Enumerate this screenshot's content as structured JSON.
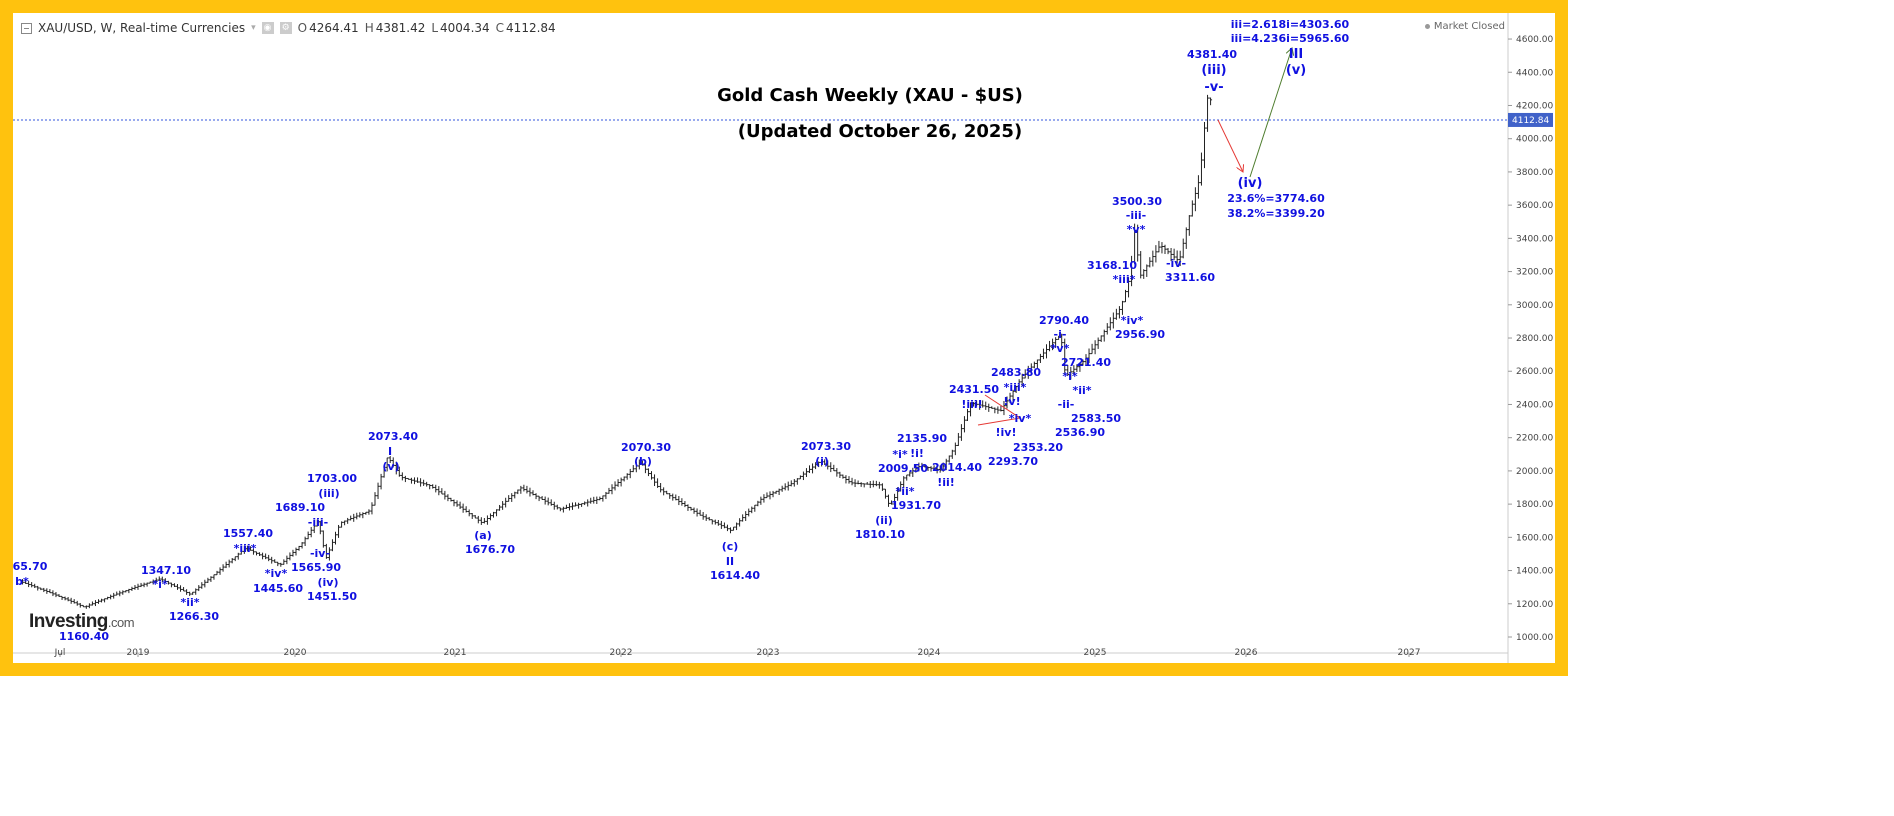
{
  "header": {
    "symbol_title": "XAU/USD, W, Real-time Currencies",
    "open_label": "O",
    "open": "4264.41",
    "high_label": "H",
    "high": "4381.42",
    "low_label": "L",
    "low": "4004.34",
    "close_label": "C",
    "close": "4112.84",
    "market_status": "Market Closed"
  },
  "logo": {
    "name": "Investing",
    "suffix": ".com"
  },
  "chart_data": {
    "type": "ohlc",
    "title": "Gold Cash Weekly (XAU - $US)",
    "subtitle": "(Updated October 26, 2025)",
    "current_price_label": "4112.84",
    "current_price": 4112.84,
    "ylim": [
      1000,
      4600
    ],
    "y_ticks": [
      "1000.00",
      "1200.00",
      "1400.00",
      "1600.00",
      "1800.00",
      "2000.00",
      "2200.00",
      "2400.00",
      "2600.00",
      "2800.00",
      "3000.00",
      "3200.00",
      "3400.00",
      "3600.00",
      "3800.00",
      "4000.00",
      "4200.00",
      "4400.00",
      "4600.00"
    ],
    "x_ticks": [
      "Jul",
      "2019",
      "2020",
      "2021",
      "2022",
      "2023",
      "2024",
      "2025",
      "2026",
      "2027"
    ],
    "price_path": [
      [
        2018.25,
        1340
      ],
      [
        2018.66,
        1160
      ],
      [
        2019.14,
        1347
      ],
      [
        2019.33,
        1266
      ],
      [
        2019.68,
        1557
      ],
      [
        2019.9,
        1445
      ],
      [
        2020.03,
        1560
      ],
      [
        2020.14,
        1700
      ],
      [
        2020.19,
        1470
      ],
      [
        2020.28,
        1680
      ],
      [
        2020.47,
        1750
      ],
      [
        2020.58,
        2073
      ],
      [
        2020.66,
        1950
      ],
      [
        2020.85,
        1900
      ],
      [
        2021.18,
        1680
      ],
      [
        2021.42,
        1900
      ],
      [
        2021.67,
        1780
      ],
      [
        2021.92,
        1850
      ],
      [
        2022.18,
        2070
      ],
      [
        2022.3,
        1900
      ],
      [
        2022.56,
        1720
      ],
      [
        2022.75,
        1620
      ],
      [
        2022.94,
        1800
      ],
      [
        2023.13,
        1900
      ],
      [
        2023.32,
        2060
      ],
      [
        2023.51,
        1950
      ],
      [
        2023.7,
        1950
      ],
      [
        2023.76,
        1815
      ],
      [
        2023.85,
        2000
      ],
      [
        2023.95,
        2060
      ],
      [
        2024.08,
        2020
      ],
      [
        2024.17,
        2150
      ],
      [
        2024.27,
        2400
      ],
      [
        2024.46,
        2330
      ],
      [
        2024.58,
        2500
      ],
      [
        2024.84,
        2790
      ],
      [
        2024.87,
        2540
      ],
      [
        2024.99,
        2650
      ],
      [
        2025.22,
        3000
      ],
      [
        2025.28,
        3200
      ],
      [
        2025.31,
        3500
      ],
      [
        2025.34,
        3200
      ],
      [
        2025.47,
        3400
      ],
      [
        2025.59,
        3300
      ],
      [
        2025.66,
        3600
      ],
      [
        2025.72,
        3800
      ],
      [
        2025.75,
        4100
      ],
      [
        2025.78,
        4381
      ],
      [
        2025.8,
        4112
      ]
    ],
    "annotations": [
      "65.70",
      "b*",
      "1160.40",
      "1347.10",
      "*i*",
      "*ii*",
      "1266.30",
      "1557.40",
      "*iii*",
      "*iv*",
      "1445.60",
      "1689.10",
      "(iii)",
      "1703.00",
      "-iii-",
      "-iv-",
      "1565.90",
      "(iv)",
      "1451.50",
      "2073.40",
      "I",
      "(v)",
      "(a)",
      "1676.70",
      "2070.30",
      "(b)",
      "(c)",
      "II",
      "1614.40",
      "2073.30",
      "(i)",
      "2135.90",
      "!i!",
      "2009.50",
      "*i*",
      "*ii*",
      "1931.70",
      "(ii)",
      "1810.10",
      "!ii!",
      "2014.40",
      "2431.50",
      "!iii!",
      "!iv!",
      "*iv*",
      "2353.20",
      "2293.70",
      "2483.80",
      "*iii*",
      "!v!",
      "2790.40",
      "-i-",
      "*v*",
      "2721.40",
      "*i*",
      "*ii*",
      "-ii-",
      "2583.50",
      "2536.90",
      "*iv*",
      "2956.90",
      "3168.10",
      "*iii*",
      "3500.30",
      "-iii-",
      "*v*",
      "-iv-",
      "3311.60",
      "4381.40",
      "(iii)",
      "-v-",
      "(iv)",
      "23.6%=3774.60",
      "38.2%=3399.20",
      "iii=2.618i=4303.60",
      "iii=4.236i=5965.60",
      "III",
      "(v)"
    ],
    "colors": {
      "label": "#1010E0",
      "bars": "#222222",
      "down_arrow": "#E53935",
      "up_arrow": "#4E7D2E",
      "price_line": "#3355DD"
    }
  }
}
